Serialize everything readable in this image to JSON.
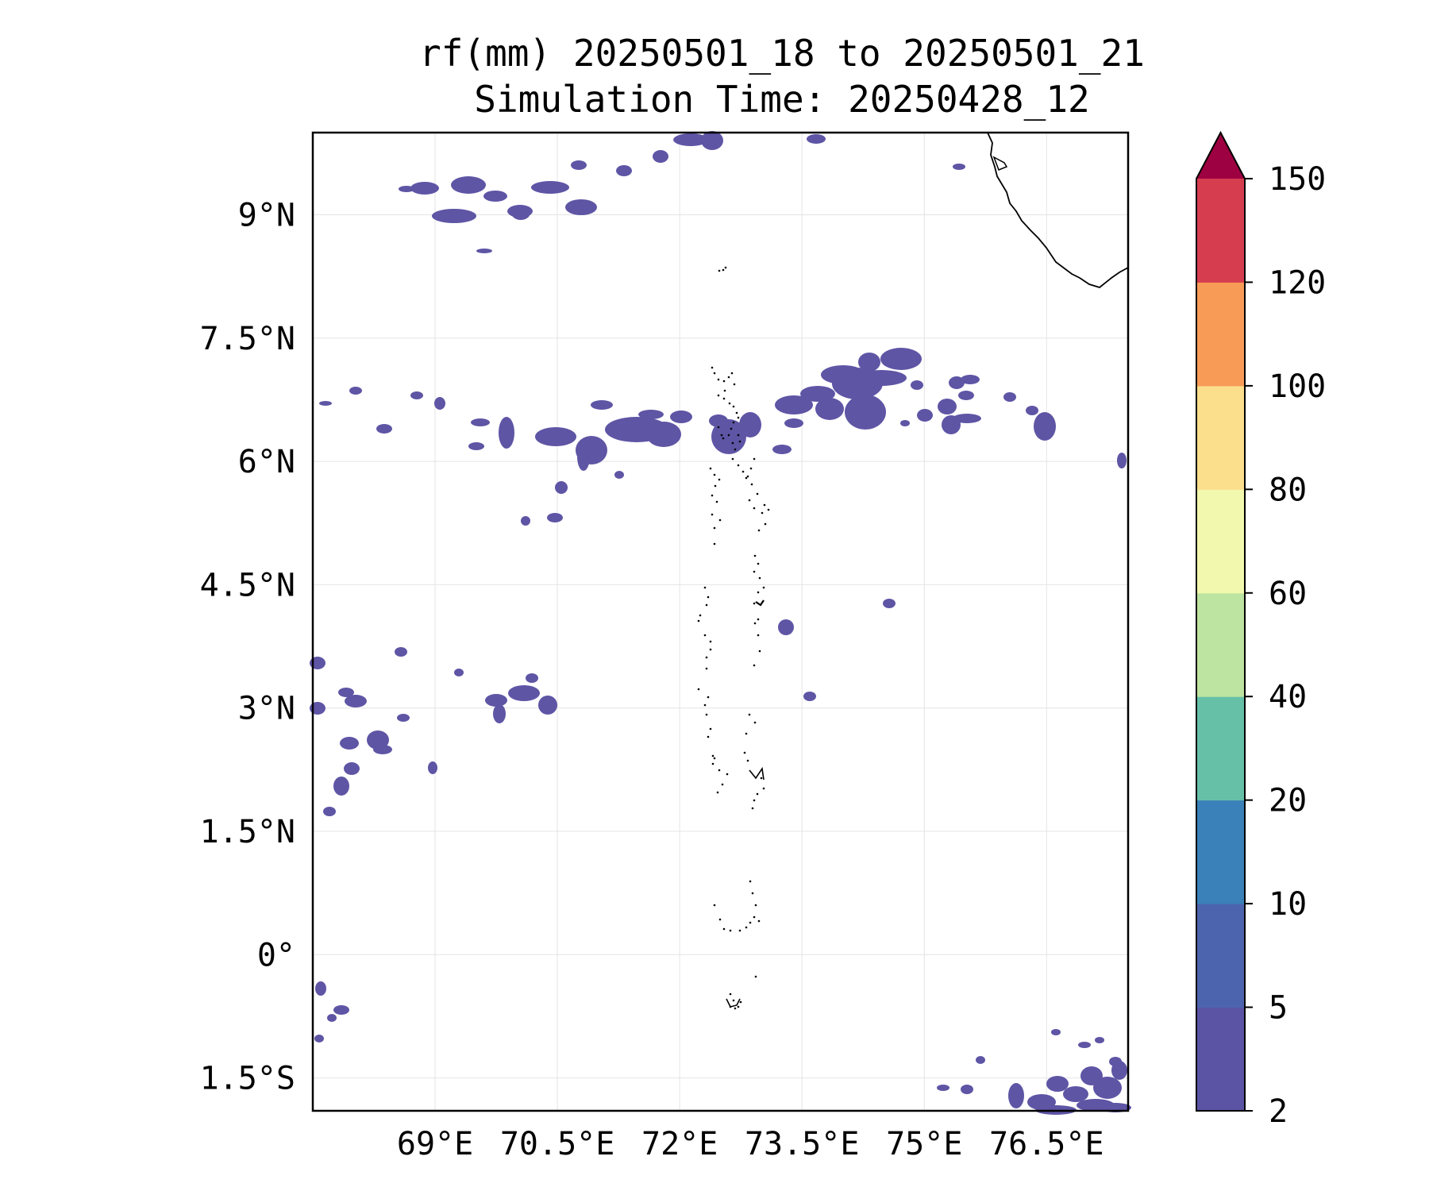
{
  "title": {
    "line1": "rf(mm) 20250501_18 to 20250501_21",
    "line2": "Simulation Time: 20250428_12"
  },
  "map": {
    "lon_range": [
      67.5,
      77.5
    ],
    "lat_range": [
      -1.9,
      10.0
    ],
    "lon_ticks": [
      {
        "value": 69.0,
        "label": "69°E"
      },
      {
        "value": 70.5,
        "label": "70.5°E"
      },
      {
        "value": 72.0,
        "label": "72°E"
      },
      {
        "value": 73.5,
        "label": "73.5°E"
      },
      {
        "value": 75.0,
        "label": "75°E"
      },
      {
        "value": 76.5,
        "label": "76.5°E"
      }
    ],
    "lat_ticks": [
      {
        "value": 9.0,
        "label": "9°N"
      },
      {
        "value": 7.5,
        "label": "7.5°N"
      },
      {
        "value": 6.0,
        "label": "6°N"
      },
      {
        "value": 4.5,
        "label": "4.5°N"
      },
      {
        "value": 3.0,
        "label": "3°N"
      },
      {
        "value": 1.5,
        "label": "1.5°N"
      },
      {
        "value": 0.0,
        "label": "0°"
      },
      {
        "value": -1.5,
        "label": "1.5°S"
      }
    ],
    "gridlines": true,
    "rain_color": "#5e55a5"
  },
  "colorbar": {
    "levels": [
      "2",
      "5",
      "10",
      "20",
      "40",
      "60",
      "80",
      "100",
      "120",
      "150"
    ],
    "colors": [
      "#5b53a4",
      "#4c64ae",
      "#3a80b9",
      "#66c0a8",
      "#bde4a0",
      "#f2f8ad",
      "#fbdf8c",
      "#f89b57",
      "#d63e4f"
    ],
    "extend_color": "#9e0142",
    "extend": "max"
  }
}
